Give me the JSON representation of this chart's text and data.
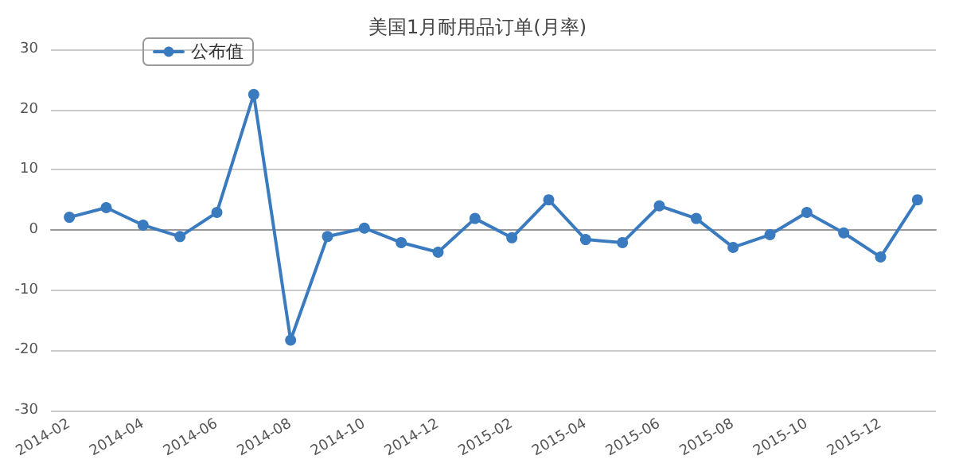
{
  "chart_data": {
    "type": "line",
    "title": "美国1月耐用品订单(月率)",
    "categories": [
      "2014-02",
      null,
      "2014-04",
      null,
      "2014-06",
      null,
      "2014-08",
      null,
      "2014-10",
      null,
      "2014-12",
      null,
      "2015-02",
      null,
      "2015-04",
      null,
      "2015-06",
      null,
      "2015-08",
      null,
      "2015-10",
      null,
      "2015-12",
      null
    ],
    "series": [
      {
        "name": "公布值",
        "color": "#3a7bbf",
        "values": [
          2.1,
          3.7,
          0.8,
          -1.1,
          2.9,
          22.5,
          -18.3,
          -1.1,
          0.3,
          -2.1,
          -3.7,
          1.9,
          -1.3,
          5.0,
          -1.6,
          -2.1,
          4.0,
          1.9,
          -2.9,
          -0.8,
          2.9,
          -0.5,
          -4.5,
          5.0
        ]
      }
    ],
    "ylim": [
      -30,
      30
    ],
    "yticks": [
      -30,
      -20,
      -10,
      0,
      10,
      20,
      30
    ],
    "grid": "y",
    "legend": "top left",
    "marker": "circle",
    "line_style": "solid"
  }
}
